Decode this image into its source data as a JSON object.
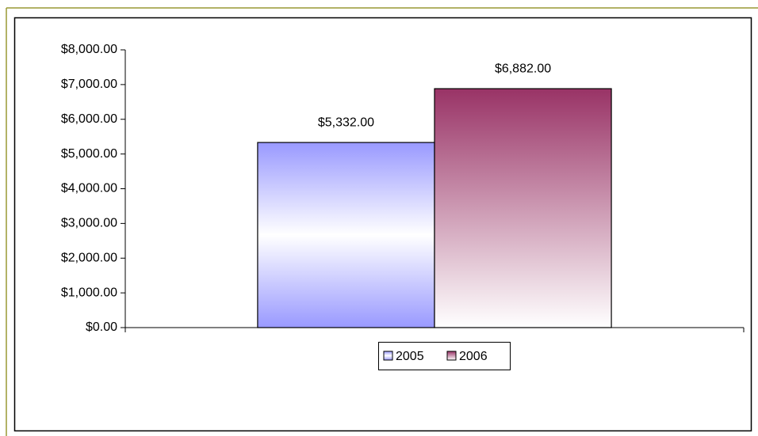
{
  "chart_data": {
    "type": "bar",
    "categories": [
      null
    ],
    "series": [
      {
        "name": "2005",
        "color": "#9999ff",
        "values": [
          5332
        ],
        "value_labels": [
          "$5,332.00"
        ]
      },
      {
        "name": "2006",
        "color": "#993366",
        "values": [
          6882
        ],
        "value_labels": [
          "$6,882.00"
        ]
      }
    ],
    "ylim": [
      0,
      8000
    ],
    "yticks": [
      {
        "value": 0,
        "label": "$0.00"
      },
      {
        "value": 1000,
        "label": "$1,000.00"
      },
      {
        "value": 2000,
        "label": "$2,000.00"
      },
      {
        "value": 3000,
        "label": "$3,000.00"
      },
      {
        "value": 4000,
        "label": "$4,000.00"
      },
      {
        "value": 5000,
        "label": "$5,000.00"
      },
      {
        "value": 6000,
        "label": "$6,000.00"
      },
      {
        "value": 7000,
        "label": "$7,000.00"
      },
      {
        "value": 8000,
        "label": "$8,000.00"
      }
    ],
    "legend": "bottom"
  }
}
